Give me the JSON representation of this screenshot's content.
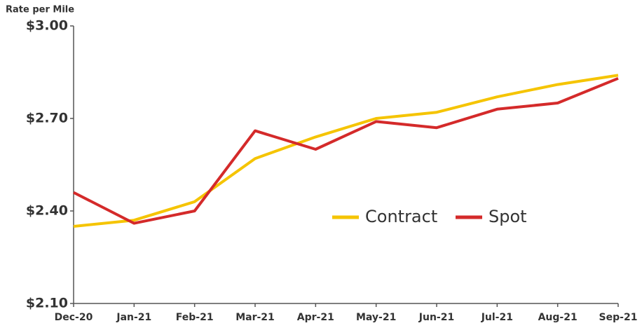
{
  "chart_data": {
    "type": "line",
    "y_label": "Rate per Mile",
    "categories": [
      "Dec-20",
      "Jan-21",
      "Feb-21",
      "Mar-21",
      "Apr-21",
      "May-21",
      "Jun-21",
      "Jul-21",
      "Aug-21",
      "Sep-21"
    ],
    "series": [
      {
        "name": "Contract",
        "color": "#f5c400",
        "values": [
          2.35,
          2.37,
          2.43,
          2.57,
          2.64,
          2.7,
          2.72,
          2.77,
          2.81,
          2.84
        ]
      },
      {
        "name": "Spot",
        "color": "#d42a2a",
        "values": [
          2.46,
          2.36,
          2.4,
          2.66,
          2.6,
          2.69,
          2.67,
          2.73,
          2.75,
          2.83
        ]
      }
    ],
    "ylim": [
      2.1,
      3.0
    ],
    "yticks": [
      {
        "value": 2.1,
        "label": "$2.10"
      },
      {
        "value": 2.4,
        "label": "$2.40"
      },
      {
        "value": 2.7,
        "label": "$2.70"
      },
      {
        "value": 3.0,
        "label": "$3.00"
      }
    ],
    "grid": false,
    "legend": "center"
  }
}
